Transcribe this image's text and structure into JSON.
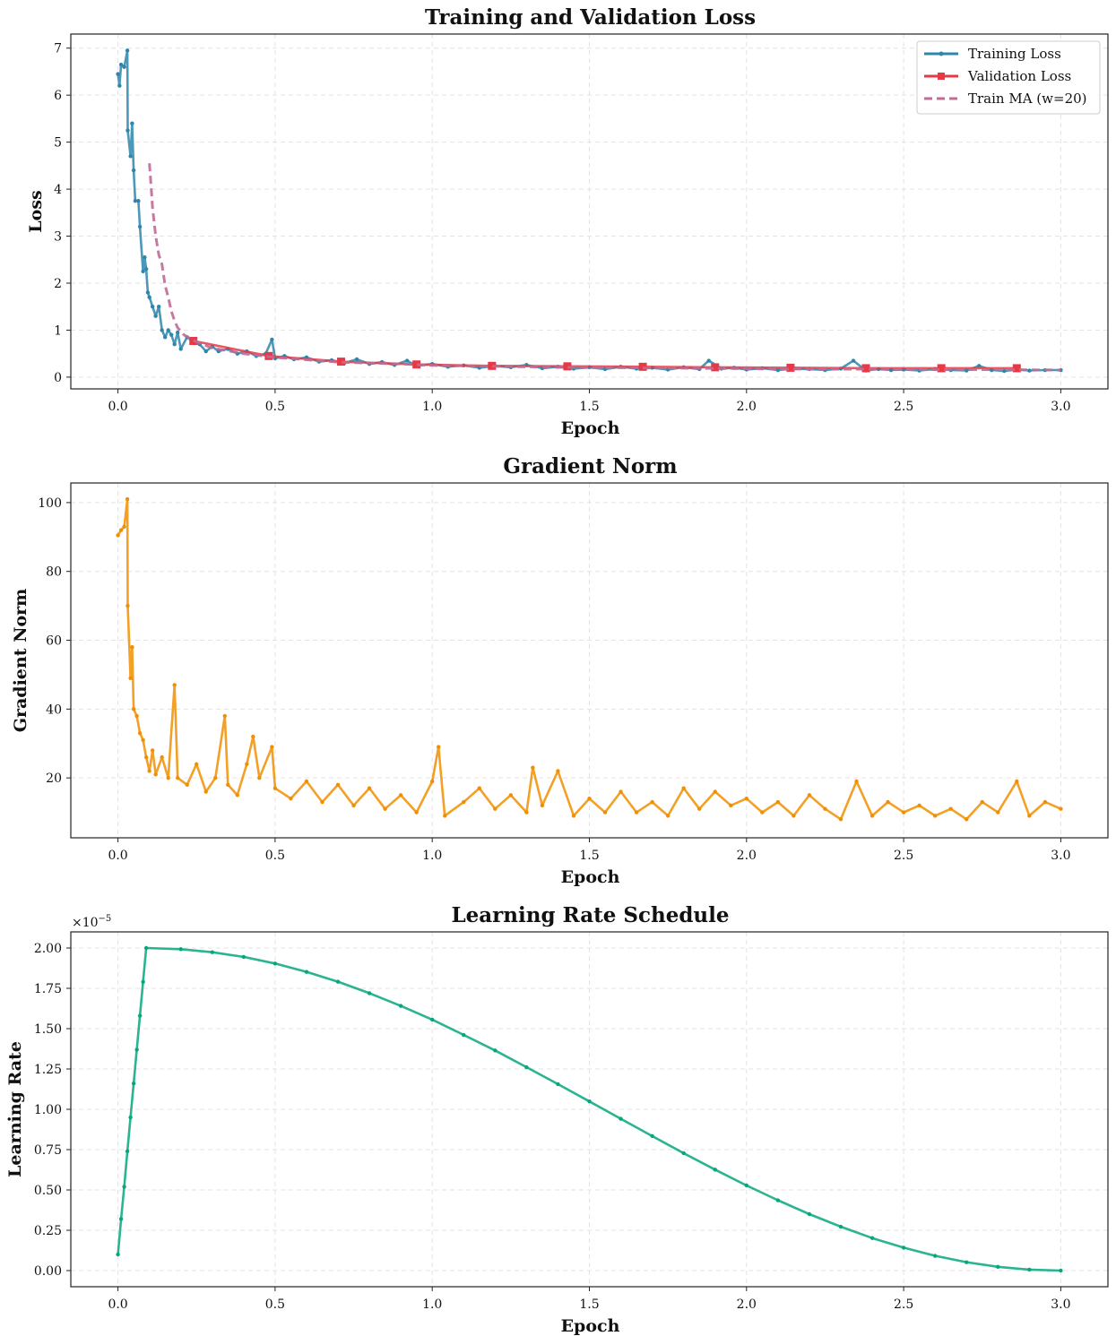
{
  "chart_data": [
    {
      "type": "line",
      "title": "Training and Validation Loss",
      "xlabel": "Epoch",
      "ylabel": "Loss",
      "xlim": [
        -0.15,
        3.15
      ],
      "ylim": [
        -0.25,
        7.3
      ],
      "xticks": [
        0.0,
        0.5,
        1.0,
        1.5,
        2.0,
        2.5,
        3.0
      ],
      "xtick_labels": [
        "0.0",
        "0.5",
        "1.0",
        "1.5",
        "2.0",
        "2.5",
        "3.0"
      ],
      "yticks": [
        0,
        1,
        2,
        3,
        4,
        5,
        6,
        7
      ],
      "ytick_labels": [
        "0",
        "1",
        "2",
        "3",
        "4",
        "5",
        "6",
        "7"
      ],
      "grid": true,
      "legend": "top-right",
      "series": [
        {
          "name": "Training Loss",
          "color": "#2e86ab",
          "style": "solid-dot-markers",
          "x": [
            0,
            0.005,
            0.01,
            0.02,
            0.03,
            0.031,
            0.04,
            0.045,
            0.05,
            0.055,
            0.065,
            0.07,
            0.08,
            0.085,
            0.09,
            0.095,
            0.1,
            0.11,
            0.12,
            0.13,
            0.14,
            0.15,
            0.16,
            0.17,
            0.18,
            0.19,
            0.2,
            0.22,
            0.24,
            0.26,
            0.28,
            0.3,
            0.32,
            0.35,
            0.38,
            0.41,
            0.44,
            0.47,
            0.49,
            0.5,
            0.53,
            0.56,
            0.6,
            0.64,
            0.68,
            0.72,
            0.76,
            0.8,
            0.84,
            0.88,
            0.92,
            0.95,
            1.0,
            1.05,
            1.1,
            1.15,
            1.2,
            1.25,
            1.3,
            1.35,
            1.4,
            1.45,
            1.5,
            1.55,
            1.6,
            1.65,
            1.7,
            1.75,
            1.8,
            1.85,
            1.88,
            1.92,
            1.96,
            2.0,
            2.05,
            2.1,
            2.15,
            2.2,
            2.25,
            2.3,
            2.34,
            2.38,
            2.42,
            2.46,
            2.5,
            2.55,
            2.6,
            2.65,
            2.7,
            2.74,
            2.78,
            2.82,
            2.86,
            2.9,
            2.95,
            3.0
          ],
          "y": [
            6.45,
            6.2,
            6.65,
            6.6,
            6.95,
            5.25,
            4.7,
            5.4,
            4.4,
            3.75,
            3.75,
            3.2,
            2.25,
            2.55,
            2.3,
            1.8,
            1.7,
            1.5,
            1.3,
            1.5,
            1.0,
            0.85,
            1.0,
            0.9,
            0.7,
            0.95,
            0.6,
            0.85,
            0.75,
            0.7,
            0.55,
            0.65,
            0.55,
            0.6,
            0.5,
            0.55,
            0.45,
            0.5,
            0.8,
            0.4,
            0.45,
            0.38,
            0.42,
            0.33,
            0.36,
            0.3,
            0.38,
            0.28,
            0.32,
            0.26,
            0.35,
            0.24,
            0.28,
            0.22,
            0.25,
            0.2,
            0.24,
            0.21,
            0.26,
            0.19,
            0.22,
            0.18,
            0.21,
            0.17,
            0.22,
            0.18,
            0.2,
            0.16,
            0.21,
            0.17,
            0.35,
            0.18,
            0.2,
            0.16,
            0.19,
            0.15,
            0.18,
            0.17,
            0.15,
            0.18,
            0.35,
            0.14,
            0.17,
            0.15,
            0.16,
            0.14,
            0.17,
            0.15,
            0.14,
            0.24,
            0.15,
            0.13,
            0.16,
            0.14,
            0.15,
            0.15
          ]
        },
        {
          "name": "Validation Loss",
          "color": "#e63946",
          "style": "solid-square-markers",
          "x": [
            0.24,
            0.48,
            0.71,
            0.95,
            1.19,
            1.43,
            1.67,
            1.9,
            2.14,
            2.38,
            2.62,
            2.86
          ],
          "y": [
            0.77,
            0.45,
            0.33,
            0.27,
            0.24,
            0.23,
            0.22,
            0.21,
            0.2,
            0.19,
            0.19,
            0.19
          ]
        },
        {
          "name": "Train MA (w=20)",
          "color": "#c06c95",
          "style": "dashed",
          "x": [
            0.1,
            0.105,
            0.11,
            0.12,
            0.13,
            0.14,
            0.15,
            0.16,
            0.17,
            0.18,
            0.19,
            0.21,
            0.23,
            0.25,
            0.3,
            0.35,
            0.4,
            0.5,
            0.6,
            0.7,
            0.8,
            0.9,
            1.0,
            1.2,
            1.4,
            1.6,
            1.8,
            2.0,
            2.2,
            2.4,
            2.6,
            2.8,
            3.0
          ],
          "y": [
            4.55,
            4.1,
            3.6,
            3.0,
            2.6,
            2.4,
            1.95,
            1.7,
            1.4,
            1.2,
            1.05,
            0.9,
            0.82,
            0.75,
            0.62,
            0.56,
            0.5,
            0.42,
            0.37,
            0.32,
            0.3,
            0.28,
            0.25,
            0.23,
            0.21,
            0.2,
            0.19,
            0.18,
            0.17,
            0.17,
            0.16,
            0.16,
            0.15
          ]
        }
      ]
    },
    {
      "type": "line",
      "title": "Gradient Norm",
      "xlabel": "Epoch",
      "ylabel": "Gradient Norm",
      "xlim": [
        -0.15,
        3.15
      ],
      "ylim": [
        2.6,
        105.7
      ],
      "xticks": [
        0.0,
        0.5,
        1.0,
        1.5,
        2.0,
        2.5,
        3.0
      ],
      "xtick_labels": [
        "0.0",
        "0.5",
        "1.0",
        "1.5",
        "2.0",
        "2.5",
        "3.0"
      ],
      "yticks": [
        20,
        40,
        60,
        80,
        100
      ],
      "ytick_labels": [
        "20",
        "40",
        "60",
        "80",
        "100"
      ],
      "grid": true,
      "series": [
        {
          "color": "#f18f01",
          "style": "solid-dot-markers",
          "x": [
            0,
            0.01,
            0.02,
            0.03,
            0.031,
            0.04,
            0.045,
            0.05,
            0.06,
            0.07,
            0.08,
            0.09,
            0.1,
            0.11,
            0.12,
            0.14,
            0.16,
            0.18,
            0.19,
            0.22,
            0.25,
            0.28,
            0.31,
            0.34,
            0.35,
            0.38,
            0.41,
            0.43,
            0.45,
            0.49,
            0.5,
            0.55,
            0.6,
            0.65,
            0.7,
            0.75,
            0.8,
            0.85,
            0.9,
            0.95,
            1.0,
            1.02,
            1.04,
            1.1,
            1.15,
            1.2,
            1.25,
            1.3,
            1.32,
            1.35,
            1.4,
            1.45,
            1.5,
            1.55,
            1.6,
            1.65,
            1.7,
            1.75,
            1.8,
            1.85,
            1.9,
            1.95,
            2.0,
            2.05,
            2.1,
            2.15,
            2.2,
            2.25,
            2.3,
            2.35,
            2.4,
            2.45,
            2.5,
            2.55,
            2.6,
            2.65,
            2.7,
            2.75,
            2.8,
            2.86,
            2.9,
            2.95,
            3.0
          ],
          "y": [
            90.5,
            92,
            93,
            101,
            70,
            49,
            58,
            40,
            38,
            33,
            31,
            26,
            22,
            28,
            21,
            26,
            20,
            47,
            20,
            18,
            24,
            16,
            20,
            38,
            18,
            15,
            24,
            32,
            20,
            29,
            17,
            14,
            19,
            13,
            18,
            12,
            17,
            11,
            15,
            10,
            19,
            29,
            9,
            13,
            17,
            11,
            15,
            10,
            23,
            12,
            22,
            9,
            14,
            10,
            16,
            10,
            13,
            9,
            17,
            11,
            16,
            12,
            14,
            10,
            13,
            9,
            15,
            11,
            8,
            19,
            9,
            13,
            10,
            12,
            9,
            11,
            8,
            13,
            10,
            19,
            9,
            13,
            11
          ]
        }
      ]
    },
    {
      "type": "line",
      "title": "Learning Rate Schedule",
      "xlabel": "Epoch",
      "ylabel": "Learning Rate",
      "y_scale_multiplier": "1e-5",
      "offset_text": "×10",
      "offset_exp": "−5",
      "xlim": [
        -0.15,
        3.15
      ],
      "ylim": [
        -0.1,
        2.1
      ],
      "xticks": [
        0.0,
        0.5,
        1.0,
        1.5,
        2.0,
        2.5,
        3.0
      ],
      "xtick_labels": [
        "0.0",
        "0.5",
        "1.0",
        "1.5",
        "2.0",
        "2.5",
        "3.0"
      ],
      "yticks": [
        0,
        0.25,
        0.5,
        0.75,
        1.0,
        1.25,
        1.5,
        1.75,
        2.0
      ],
      "ytick_labels": [
        "0.00",
        "0.25",
        "0.50",
        "0.75",
        "1.00",
        "1.25",
        "1.50",
        "1.75",
        "2.00"
      ],
      "grid": true,
      "series": [
        {
          "color": "#06a77d",
          "style": "solid-dot-markers",
          "x": [
            0,
            0.01,
            0.02,
            0.03,
            0.04,
            0.05,
            0.06,
            0.07,
            0.08,
            0.09,
            0.2,
            0.3,
            0.4,
            0.5,
            0.6,
            0.7,
            0.8,
            0.9,
            1.0,
            1.1,
            1.2,
            1.3,
            1.4,
            1.5,
            1.6,
            1.7,
            1.8,
            1.9,
            2.0,
            2.1,
            2.2,
            2.3,
            2.4,
            2.5,
            2.6,
            2.7,
            2.8,
            2.9,
            3.0
          ],
          "y": [
            0.1,
            0.32,
            0.52,
            0.74,
            0.95,
            1.16,
            1.37,
            1.58,
            1.79,
            2.0,
            1.993,
            1.974,
            1.945,
            1.904,
            1.852,
            1.791,
            1.72,
            1.641,
            1.556,
            1.461,
            1.365,
            1.261,
            1.156,
            1.049,
            0.941,
            0.834,
            0.728,
            0.626,
            0.528,
            0.436,
            0.35,
            0.272,
            0.2015,
            0.142,
            0.0915,
            0.052,
            0.0233,
            0.006,
            0
          ]
        }
      ]
    }
  ]
}
